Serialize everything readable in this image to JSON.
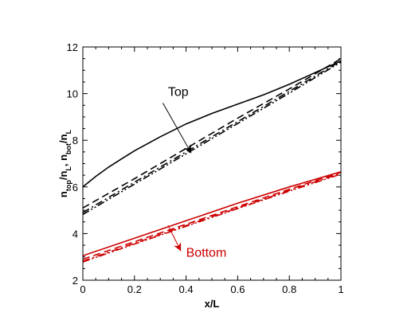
{
  "chart_data": {
    "type": "line",
    "title": "",
    "xlabel": "x/L",
    "ylabel": {
      "segments": [
        {
          "text": "n",
          "sub": false
        },
        {
          "text": "top",
          "sub": true
        },
        {
          "text": "/n",
          "sub": false
        },
        {
          "text": "L",
          "sub": true
        },
        {
          "text": ", n",
          "sub": false
        },
        {
          "text": "bot",
          "sub": true
        },
        {
          "text": "/n",
          "sub": false
        },
        {
          "text": "L",
          "sub": true
        }
      ]
    },
    "xlim": [
      0,
      1
    ],
    "ylim": [
      2,
      12
    ],
    "xticks": [
      0,
      0.2,
      0.4,
      0.6,
      0.8,
      1
    ],
    "xtick_labels": [
      "0",
      "0.2",
      "0.4",
      "0.6",
      "0.8",
      "1"
    ],
    "yticks": [
      2,
      4,
      6,
      8,
      10,
      12
    ],
    "ytick_labels": [
      "2",
      "4",
      "6",
      "8",
      "10",
      "12"
    ],
    "grid": false,
    "colors": {
      "top": "#000000",
      "bottom": "#cc0000"
    },
    "series": [
      {
        "group": "top",
        "style": "solid",
        "x": [
          0,
          0.05,
          0.1,
          0.15,
          0.2,
          0.3,
          0.4,
          0.5,
          0.6,
          0.7,
          0.8,
          0.9,
          1.0
        ],
        "y": [
          6.0,
          6.45,
          6.85,
          7.2,
          7.55,
          8.15,
          8.7,
          9.15,
          9.55,
          9.95,
          10.4,
          10.9,
          11.4
        ]
      },
      {
        "group": "top",
        "style": "dashed",
        "x": [
          0,
          0.2,
          0.4,
          0.6,
          0.8,
          1.0
        ],
        "y": [
          5.1,
          6.35,
          7.65,
          8.95,
          10.2,
          11.5
        ]
      },
      {
        "group": "top",
        "style": "dashdot",
        "x": [
          0,
          0.2,
          0.4,
          0.6,
          0.8,
          1.0
        ],
        "y": [
          4.9,
          6.2,
          7.5,
          8.8,
          10.1,
          11.4
        ]
      },
      {
        "group": "top",
        "style": "dashdotdot",
        "x": [
          0,
          0.2,
          0.4,
          0.6,
          0.8,
          1.0
        ],
        "y": [
          4.82,
          6.12,
          7.42,
          8.72,
          10.02,
          11.35
        ]
      },
      {
        "group": "bottom",
        "style": "solid",
        "x": [
          0,
          0.2,
          0.4,
          0.6,
          0.8,
          1.0
        ],
        "y": [
          3.05,
          3.8,
          4.55,
          5.3,
          6.0,
          6.65
        ]
      },
      {
        "group": "bottom",
        "style": "dashed",
        "x": [
          0,
          0.2,
          0.4,
          0.6,
          0.8,
          1.0
        ],
        "y": [
          2.9,
          3.65,
          4.4,
          5.15,
          5.9,
          6.62
        ]
      },
      {
        "group": "bottom",
        "style": "dashdot",
        "x": [
          0,
          0.2,
          0.4,
          0.6,
          0.8,
          1.0
        ],
        "y": [
          2.82,
          3.58,
          4.34,
          5.1,
          5.85,
          6.58
        ]
      },
      {
        "group": "bottom",
        "style": "dashdotdot",
        "x": [
          0,
          0.2,
          0.4,
          0.6,
          0.8,
          1.0
        ],
        "y": [
          2.78,
          3.55,
          4.31,
          5.07,
          5.82,
          6.55
        ]
      }
    ],
    "annotations": [
      {
        "text": "Top",
        "color": "#000000",
        "arrow_from": [
          0.31,
          9.6
        ],
        "arrow_to": [
          0.42,
          7.45
        ],
        "label_at": [
          0.33,
          9.9
        ]
      },
      {
        "text": "Bottom",
        "color": "#cc0000",
        "arrow_from": [
          0.33,
          4.35
        ],
        "arrow_to": [
          0.38,
          3.25
        ],
        "label_at": [
          0.4,
          3.0
        ]
      }
    ]
  }
}
